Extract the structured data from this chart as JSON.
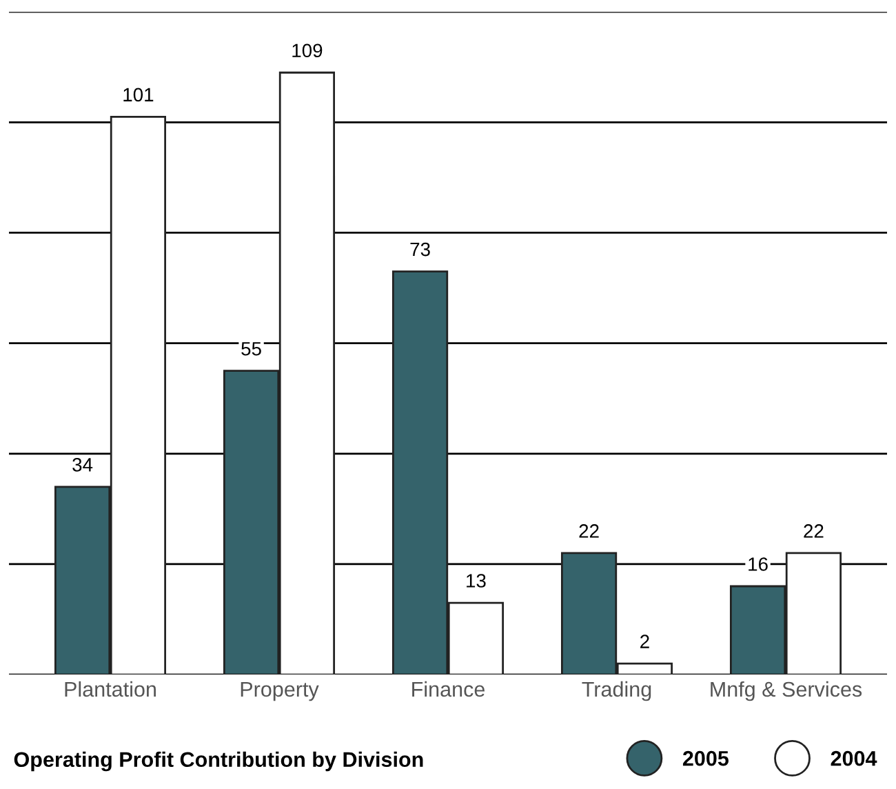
{
  "chart_data": {
    "type": "bar",
    "title": "Operating Profit Contribution by Division",
    "categories": [
      "Plantation",
      "Property",
      "Finance",
      "Trading",
      "Mnfg & Services"
    ],
    "series": [
      {
        "name": "2005",
        "color": "#35636b",
        "values": [
          34,
          55,
          73,
          22,
          16
        ]
      },
      {
        "name": "2004",
        "color": "#ffffff",
        "values": [
          101,
          109,
          13,
          2,
          22
        ]
      }
    ],
    "ylim": [
      0,
      120
    ],
    "yticks": [
      {
        "value": 0,
        "label": null
      },
      {
        "value": 20,
        "label": null
      },
      {
        "value": 40,
        "label": null
      },
      {
        "value": 60,
        "label": null
      },
      {
        "value": 80,
        "label": null
      },
      {
        "value": 100,
        "label": null
      },
      {
        "value": 120,
        "label": null
      }
    ],
    "tick_labels": "x",
    "grid": "y",
    "data_labels": true,
    "legend": "bottom right"
  }
}
